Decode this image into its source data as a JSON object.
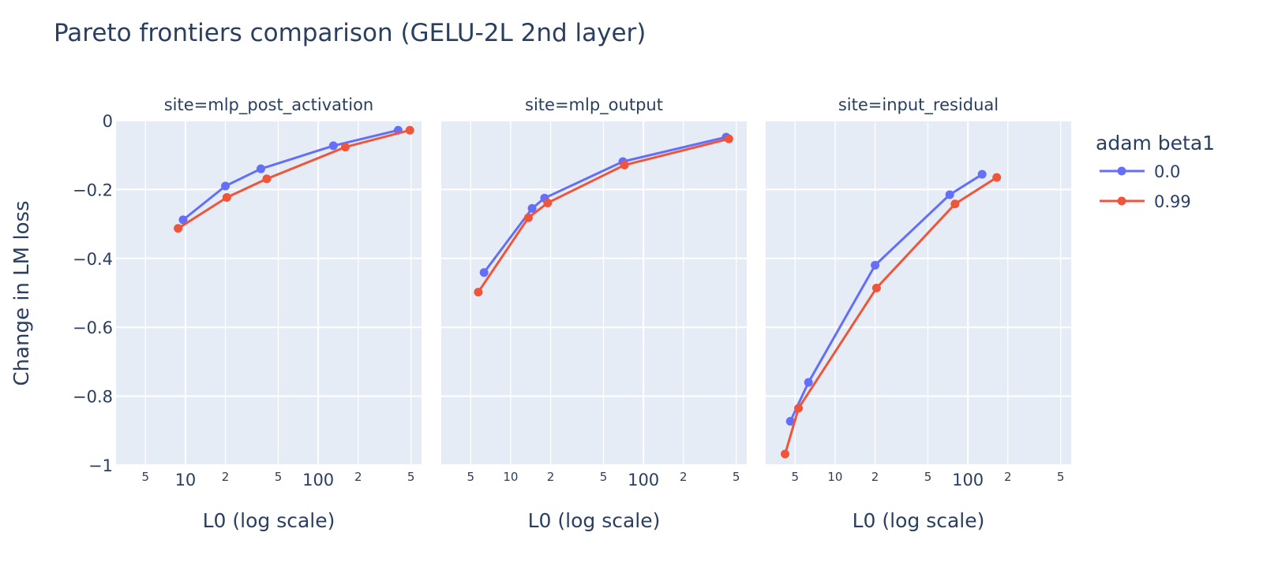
{
  "chart_data": {
    "type": "line",
    "title": "Pareto frontiers comparison (GELU-2L 2nd layer)",
    "ylabel": "Change in LM loss",
    "ylim": [
      -1,
      0
    ],
    "yticks": [
      {
        "value": 0,
        "label": "0"
      },
      {
        "value": -0.2,
        "label": "−0.2"
      },
      {
        "value": -0.4,
        "label": "−0.4"
      },
      {
        "value": -0.6,
        "label": "−0.6"
      },
      {
        "value": -0.8,
        "label": "−0.8"
      },
      {
        "value": -1,
        "label": "−1"
      }
    ],
    "x_scale": "log",
    "grid": true,
    "legend": {
      "title": "adam beta1",
      "position": "right"
    },
    "series_styles": [
      {
        "name": "0.0",
        "color": "#636efa"
      },
      {
        "name": "0.99",
        "color": "#ef553b"
      }
    ],
    "facets": [
      {
        "title": "site=mlp_post_activation",
        "xlabel": "L0 (log scale)",
        "xlim": [
          3,
          600
        ],
        "xticks": [
          {
            "value": 5,
            "label": "5",
            "major": false
          },
          {
            "value": 10,
            "label": "10",
            "major": true
          },
          {
            "value": 20,
            "label": "2",
            "major": false
          },
          {
            "value": 50,
            "label": "5",
            "major": false
          },
          {
            "value": 100,
            "label": "100",
            "major": true
          },
          {
            "value": 200,
            "label": "2",
            "major": false
          },
          {
            "value": 500,
            "label": "5",
            "major": false
          }
        ],
        "series": [
          {
            "name": "0.0",
            "points": [
              [
                9.6,
                -0.288
              ],
              [
                20,
                -0.19
              ],
              [
                37,
                -0.14
              ],
              [
                130,
                -0.073
              ],
              [
                400,
                -0.028
              ]
            ]
          },
          {
            "name": "0.99",
            "points": [
              [
                8.8,
                -0.313
              ],
              [
                20.5,
                -0.223
              ],
              [
                41,
                -0.169
              ],
              [
                160,
                -0.077
              ],
              [
                490,
                -0.028
              ]
            ]
          }
        ]
      },
      {
        "title": "site=mlp_output",
        "xlabel": "L0 (log scale)",
        "xlim": [
          3,
          600
        ],
        "xticks": [
          {
            "value": 5,
            "label": "5",
            "major": false
          },
          {
            "value": 10,
            "label": "10",
            "major": false
          },
          {
            "value": 20,
            "label": "2",
            "major": false
          },
          {
            "value": 50,
            "label": "5",
            "major": false
          },
          {
            "value": 100,
            "label": "100",
            "major": true
          },
          {
            "value": 200,
            "label": "2",
            "major": false
          },
          {
            "value": 500,
            "label": "5",
            "major": false
          }
        ],
        "series": [
          {
            "name": "0.0",
            "points": [
              [
                6.3,
                -0.441
              ],
              [
                14.5,
                -0.255
              ],
              [
                18,
                -0.225
              ],
              [
                70,
                -0.119
              ],
              [
                420,
                -0.048
              ]
            ]
          },
          {
            "name": "0.99",
            "points": [
              [
                5.7,
                -0.498
              ],
              [
                13.6,
                -0.282
              ],
              [
                19,
                -0.239
              ],
              [
                72,
                -0.129
              ],
              [
                440,
                -0.053
              ]
            ]
          }
        ]
      },
      {
        "title": "site=input_residual",
        "xlabel": "L0 (log scale)",
        "xlim": [
          3,
          600
        ],
        "xticks": [
          {
            "value": 5,
            "label": "5",
            "major": false
          },
          {
            "value": 10,
            "label": "10",
            "major": false
          },
          {
            "value": 20,
            "label": "2",
            "major": false
          },
          {
            "value": 50,
            "label": "5",
            "major": false
          },
          {
            "value": 100,
            "label": "100",
            "major": true
          },
          {
            "value": 200,
            "label": "2",
            "major": false
          },
          {
            "value": 500,
            "label": "5",
            "major": false
          }
        ],
        "series": [
          {
            "name": "0.0",
            "points": [
              [
                4.6,
                -0.873
              ],
              [
                6.3,
                -0.76
              ],
              [
                20,
                -0.42
              ],
              [
                73,
                -0.215
              ],
              [
                128,
                -0.156
              ]
            ]
          },
          {
            "name": "0.99",
            "points": [
              [
                4.2,
                -0.968
              ],
              [
                5.3,
                -0.835
              ],
              [
                20.5,
                -0.486
              ],
              [
                80,
                -0.242
              ],
              [
                165,
                -0.165
              ]
            ]
          }
        ]
      }
    ]
  }
}
